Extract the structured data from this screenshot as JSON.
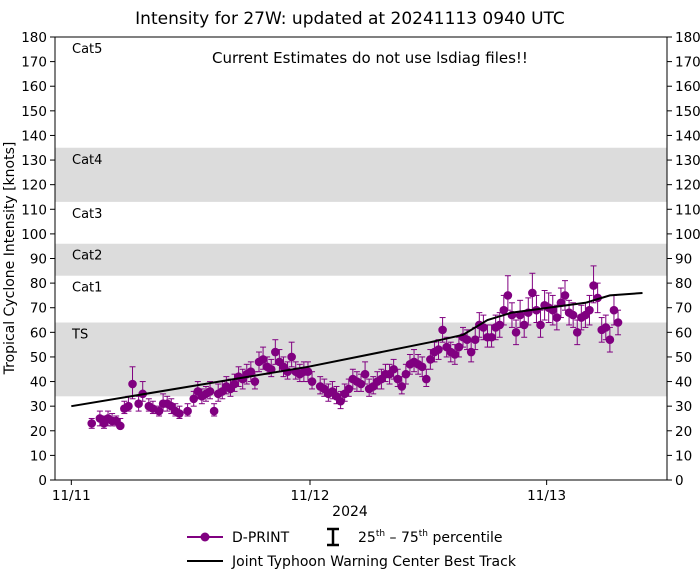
{
  "chart_data": {
    "type": "scatter",
    "title": "Intensity for 27W: updated at 20241113 0940 UTC",
    "annotation": "Current Estimates do not use lsdiag files!!",
    "xlabel": "2024",
    "ylabel": "Tropical Cyclone Intensity [knots]",
    "ylim": [
      0,
      180
    ],
    "xlim_hours": [
      -4,
      146
    ],
    "y_ticks": [
      0,
      10,
      20,
      30,
      40,
      50,
      60,
      70,
      80,
      90,
      100,
      110,
      120,
      130,
      140,
      150,
      160,
      170,
      180
    ],
    "x_ticks": [
      {
        "label": "11/11",
        "hour": 0
      },
      {
        "label": "11/12",
        "hour": 58.5
      },
      {
        "label": "11/13",
        "hour": 116.5
      }
    ],
    "x_unit": "hours since 11/11 00 UTC",
    "categories": [
      {
        "name": "TS",
        "low": 34,
        "high": 64,
        "shaded": true
      },
      {
        "name": "Cat1",
        "low": 64,
        "high": 83,
        "shaded": false
      },
      {
        "name": "Cat2",
        "low": 83,
        "high": 96,
        "shaded": true
      },
      {
        "name": "Cat3",
        "low": 96,
        "high": 113,
        "shaded": false
      },
      {
        "name": "Cat4",
        "low": 113,
        "high": 135,
        "shaded": true
      },
      {
        "name": "Cat5",
        "low": 135,
        "high": 180,
        "shaded": false
      }
    ],
    "legend": {
      "dprint": "D-PRINT",
      "percentile_base": "25",
      "percentile_sup1": "th",
      "percentile_mid": " – 75",
      "percentile_sup2": "th",
      "percentile_tail": " percentile",
      "best_track": "Joint Typhoon Warning Center Best Track"
    },
    "best_track": [
      {
        "x": 0,
        "y": 30
      },
      {
        "x": 58,
        "y": 46
      },
      {
        "x": 88,
        "y": 56
      },
      {
        "x": 96,
        "y": 59
      },
      {
        "x": 102,
        "y": 65
      },
      {
        "x": 108,
        "y": 68
      },
      {
        "x": 126,
        "y": 72
      },
      {
        "x": 132,
        "y": 75
      },
      {
        "x": 140,
        "y": 76
      }
    ],
    "series": [
      {
        "name": "D-PRINT",
        "points": [
          {
            "x": 5.0,
            "y": 23,
            "lo": 21,
            "hi": 25
          },
          {
            "x": 7.0,
            "y": 25,
            "lo": 22,
            "hi": 28
          },
          {
            "x": 8.0,
            "y": 23,
            "lo": 21,
            "hi": 26
          },
          {
            "x": 9.0,
            "y": 25,
            "lo": 22,
            "hi": 28
          },
          {
            "x": 10.0,
            "y": 24,
            "lo": 22,
            "hi": 27
          },
          {
            "x": 11.0,
            "y": 24,
            "lo": 22,
            "hi": 26
          },
          {
            "x": 12.0,
            "y": 22,
            "lo": 21,
            "hi": 25
          },
          {
            "x": 13.0,
            "y": 29,
            "lo": 27,
            "hi": 32
          },
          {
            "x": 14.0,
            "y": 30,
            "lo": 28,
            "hi": 34
          },
          {
            "x": 15.0,
            "y": 39,
            "lo": 33,
            "hi": 46
          },
          {
            "x": 16.5,
            "y": 31,
            "lo": 28,
            "hi": 34
          },
          {
            "x": 17.5,
            "y": 35,
            "lo": 32,
            "hi": 40
          },
          {
            "x": 19.0,
            "y": 30,
            "lo": 28,
            "hi": 33
          },
          {
            "x": 20.0,
            "y": 29,
            "lo": 27,
            "hi": 32
          },
          {
            "x": 21.5,
            "y": 28,
            "lo": 26,
            "hi": 30
          },
          {
            "x": 22.5,
            "y": 31,
            "lo": 28,
            "hi": 35
          },
          {
            "x": 23.5,
            "y": 31,
            "lo": 28,
            "hi": 34
          },
          {
            "x": 24.5,
            "y": 30,
            "lo": 27,
            "hi": 33
          },
          {
            "x": 25.5,
            "y": 28,
            "lo": 26,
            "hi": 31
          },
          {
            "x": 26.5,
            "y": 27,
            "lo": 25,
            "hi": 30
          },
          {
            "x": 28.5,
            "y": 28,
            "lo": 26,
            "hi": 31
          },
          {
            "x": 30.0,
            "y": 33,
            "lo": 30,
            "hi": 36
          },
          {
            "x": 31.0,
            "y": 36,
            "lo": 33,
            "hi": 40
          },
          {
            "x": 32.0,
            "y": 34,
            "lo": 31,
            "hi": 37
          },
          {
            "x": 33.0,
            "y": 35,
            "lo": 32,
            "hi": 38
          },
          {
            "x": 34.0,
            "y": 36,
            "lo": 33,
            "hi": 40
          },
          {
            "x": 35.0,
            "y": 28,
            "lo": 26,
            "hi": 31
          },
          {
            "x": 36.0,
            "y": 35,
            "lo": 32,
            "hi": 39
          },
          {
            "x": 37.0,
            "y": 36,
            "lo": 33,
            "hi": 40
          },
          {
            "x": 38.0,
            "y": 38,
            "lo": 35,
            "hi": 42
          },
          {
            "x": 39.0,
            "y": 37,
            "lo": 34,
            "hi": 41
          },
          {
            "x": 40.0,
            "y": 39,
            "lo": 36,
            "hi": 43
          },
          {
            "x": 41.0,
            "y": 42,
            "lo": 38,
            "hi": 46
          },
          {
            "x": 42.0,
            "y": 41,
            "lo": 37,
            "hi": 45
          },
          {
            "x": 43.0,
            "y": 43,
            "lo": 39,
            "hi": 47
          },
          {
            "x": 44.0,
            "y": 44,
            "lo": 40,
            "hi": 48
          },
          {
            "x": 45.0,
            "y": 40,
            "lo": 37,
            "hi": 44
          },
          {
            "x": 46.0,
            "y": 48,
            "lo": 44,
            "hi": 52
          },
          {
            "x": 47.0,
            "y": 49,
            "lo": 45,
            "hi": 54
          },
          {
            "x": 48.0,
            "y": 46,
            "lo": 43,
            "hi": 50
          },
          {
            "x": 49.0,
            "y": 45,
            "lo": 42,
            "hi": 49
          },
          {
            "x": 50.0,
            "y": 52,
            "lo": 47,
            "hi": 57
          },
          {
            "x": 51.0,
            "y": 48,
            "lo": 44,
            "hi": 53
          },
          {
            "x": 52.0,
            "y": 46,
            "lo": 42,
            "hi": 50
          },
          {
            "x": 53.0,
            "y": 44,
            "lo": 41,
            "hi": 48
          },
          {
            "x": 54.0,
            "y": 50,
            "lo": 46,
            "hi": 56
          },
          {
            "x": 55.0,
            "y": 44,
            "lo": 41,
            "hi": 48
          },
          {
            "x": 56.0,
            "y": 43,
            "lo": 40,
            "hi": 47
          },
          {
            "x": 57.0,
            "y": 44,
            "lo": 40,
            "hi": 48
          },
          {
            "x": 58.0,
            "y": 44,
            "lo": 40,
            "hi": 48
          },
          {
            "x": 59.0,
            "y": 40,
            "lo": 37,
            "hi": 44
          },
          {
            "x": 61.0,
            "y": 38,
            "lo": 35,
            "hi": 42
          },
          {
            "x": 62.0,
            "y": 37,
            "lo": 34,
            "hi": 41
          },
          {
            "x": 63.0,
            "y": 35,
            "lo": 32,
            "hi": 39
          },
          {
            "x": 64.0,
            "y": 36,
            "lo": 33,
            "hi": 40
          },
          {
            "x": 65.0,
            "y": 34,
            "lo": 31,
            "hi": 38
          },
          {
            "x": 66.0,
            "y": 32,
            "lo": 29,
            "hi": 36
          },
          {
            "x": 67.0,
            "y": 35,
            "lo": 32,
            "hi": 39
          },
          {
            "x": 68.0,
            "y": 37,
            "lo": 34,
            "hi": 41
          },
          {
            "x": 69.0,
            "y": 41,
            "lo": 37,
            "hi": 45
          },
          {
            "x": 70.0,
            "y": 40,
            "lo": 36,
            "hi": 44
          },
          {
            "x": 71.0,
            "y": 39,
            "lo": 36,
            "hi": 43
          },
          {
            "x": 72.0,
            "y": 43,
            "lo": 39,
            "hi": 48
          },
          {
            "x": 73.0,
            "y": 37,
            "lo": 34,
            "hi": 41
          },
          {
            "x": 74.0,
            "y": 38,
            "lo": 35,
            "hi": 42
          },
          {
            "x": 75.0,
            "y": 40,
            "lo": 37,
            "hi": 44
          },
          {
            "x": 76.0,
            "y": 41,
            "lo": 37,
            "hi": 45
          },
          {
            "x": 77.0,
            "y": 43,
            "lo": 40,
            "hi": 47
          },
          {
            "x": 78.0,
            "y": 43,
            "lo": 39,
            "hi": 47
          },
          {
            "x": 79.0,
            "y": 45,
            "lo": 41,
            "hi": 49
          },
          {
            "x": 80.0,
            "y": 41,
            "lo": 38,
            "hi": 45
          },
          {
            "x": 81.0,
            "y": 38,
            "lo": 35,
            "hi": 42
          },
          {
            "x": 82.0,
            "y": 43,
            "lo": 39,
            "hi": 47
          },
          {
            "x": 83.0,
            "y": 47,
            "lo": 43,
            "hi": 51
          },
          {
            "x": 84.0,
            "y": 48,
            "lo": 44,
            "hi": 53
          },
          {
            "x": 85.0,
            "y": 47,
            "lo": 43,
            "hi": 51
          },
          {
            "x": 86.0,
            "y": 46,
            "lo": 42,
            "hi": 50
          },
          {
            "x": 87.0,
            "y": 41,
            "lo": 38,
            "hi": 45
          },
          {
            "x": 88.0,
            "y": 49,
            "lo": 45,
            "hi": 53
          },
          {
            "x": 89.0,
            "y": 52,
            "lo": 48,
            "hi": 56
          },
          {
            "x": 90.0,
            "y": 53,
            "lo": 49,
            "hi": 57
          },
          {
            "x": 91.0,
            "y": 61,
            "lo": 56,
            "hi": 66
          },
          {
            "x": 92.0,
            "y": 54,
            "lo": 50,
            "hi": 58
          },
          {
            "x": 93.0,
            "y": 52,
            "lo": 48,
            "hi": 56
          },
          {
            "x": 94.0,
            "y": 51,
            "lo": 47,
            "hi": 55
          },
          {
            "x": 95.0,
            "y": 54,
            "lo": 50,
            "hi": 58
          },
          {
            "x": 96.0,
            "y": 58,
            "lo": 54,
            "hi": 62
          },
          {
            "x": 97.0,
            "y": 57,
            "lo": 53,
            "hi": 61
          },
          {
            "x": 98.0,
            "y": 52,
            "lo": 48,
            "hi": 57
          },
          {
            "x": 99.0,
            "y": 57,
            "lo": 53,
            "hi": 62
          },
          {
            "x": 100.0,
            "y": 63,
            "lo": 58,
            "hi": 68
          },
          {
            "x": 101.0,
            "y": 62,
            "lo": 57,
            "hi": 67
          },
          {
            "x": 102.0,
            "y": 58,
            "lo": 54,
            "hi": 63
          },
          {
            "x": 103.0,
            "y": 58,
            "lo": 54,
            "hi": 63
          },
          {
            "x": 104.0,
            "y": 62,
            "lo": 57,
            "hi": 67
          },
          {
            "x": 105.0,
            "y": 63,
            "lo": 58,
            "hi": 68
          },
          {
            "x": 106.0,
            "y": 69,
            "lo": 63,
            "hi": 75
          },
          {
            "x": 107.0,
            "y": 75,
            "lo": 69,
            "hi": 83
          },
          {
            "x": 108.0,
            "y": 67,
            "lo": 62,
            "hi": 72
          },
          {
            "x": 109.0,
            "y": 60,
            "lo": 55,
            "hi": 65
          },
          {
            "x": 110.0,
            "y": 67,
            "lo": 62,
            "hi": 73
          },
          {
            "x": 111.0,
            "y": 63,
            "lo": 58,
            "hi": 68
          },
          {
            "x": 112.0,
            "y": 68,
            "lo": 63,
            "hi": 74
          },
          {
            "x": 113.0,
            "y": 76,
            "lo": 69,
            "hi": 84
          },
          {
            "x": 114.0,
            "y": 69,
            "lo": 64,
            "hi": 75
          },
          {
            "x": 115.0,
            "y": 63,
            "lo": 58,
            "hi": 69
          },
          {
            "x": 116.0,
            "y": 71,
            "lo": 65,
            "hi": 77
          },
          {
            "x": 117.0,
            "y": 70,
            "lo": 64,
            "hi": 76
          },
          {
            "x": 118.0,
            "y": 69,
            "lo": 63,
            "hi": 75
          },
          {
            "x": 119.0,
            "y": 66,
            "lo": 61,
            "hi": 71
          },
          {
            "x": 120.0,
            "y": 72,
            "lo": 66,
            "hi": 78
          },
          {
            "x": 121.0,
            "y": 75,
            "lo": 69,
            "hi": 81
          },
          {
            "x": 122.0,
            "y": 68,
            "lo": 63,
            "hi": 73
          },
          {
            "x": 123.0,
            "y": 67,
            "lo": 62,
            "hi": 72
          },
          {
            "x": 124.0,
            "y": 60,
            "lo": 55,
            "hi": 65
          },
          {
            "x": 125.0,
            "y": 66,
            "lo": 61,
            "hi": 71
          },
          {
            "x": 126.0,
            "y": 67,
            "lo": 62,
            "hi": 72
          },
          {
            "x": 127.0,
            "y": 69,
            "lo": 63,
            "hi": 75
          },
          {
            "x": 128.0,
            "y": 79,
            "lo": 72,
            "hi": 87
          },
          {
            "x": 129.0,
            "y": 74,
            "lo": 68,
            "hi": 80
          },
          {
            "x": 130.0,
            "y": 61,
            "lo": 56,
            "hi": 66
          },
          {
            "x": 131.0,
            "y": 62,
            "lo": 57,
            "hi": 67
          },
          {
            "x": 132.0,
            "y": 57,
            "lo": 52,
            "hi": 62
          },
          {
            "x": 133.0,
            "y": 69,
            "lo": 63,
            "hi": 75
          },
          {
            "x": 134.0,
            "y": 64,
            "lo": 59,
            "hi": 69
          }
        ]
      }
    ]
  },
  "colors": {
    "series": "#800080",
    "best_track": "#000000",
    "band": "#dcdcdc"
  }
}
